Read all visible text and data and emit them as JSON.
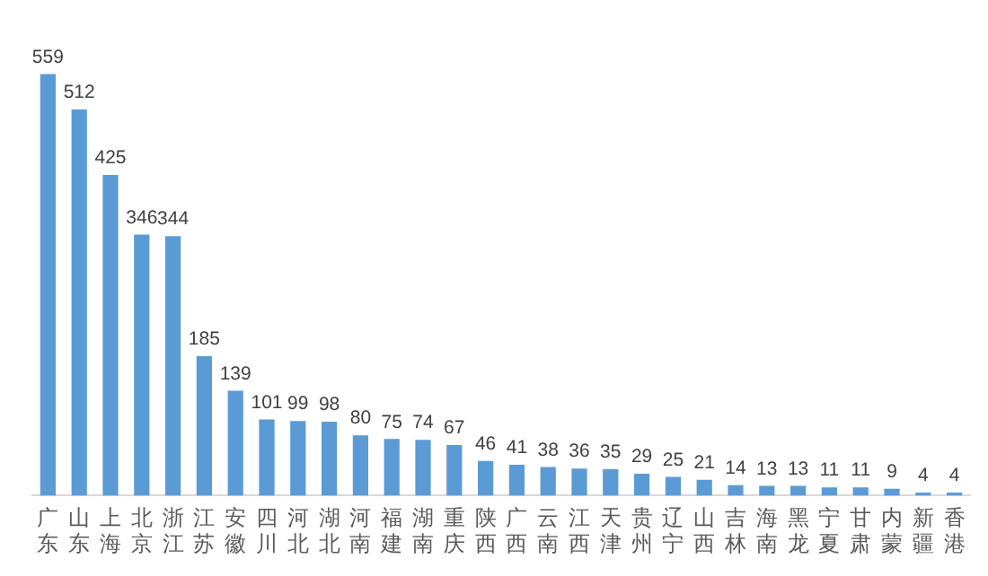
{
  "chart_data": {
    "type": "bar",
    "categories": [
      "广东",
      "山东",
      "上海",
      "北京",
      "浙江",
      "江苏",
      "安徽",
      "四川",
      "河北",
      "湖北",
      "河南",
      "福建",
      "湖南",
      "重庆",
      "陕西",
      "广西",
      "云南",
      "江西",
      "天津",
      "贵州",
      "辽宁",
      "山西",
      "吉林",
      "海南",
      "黑龙",
      "宁夏",
      "甘肃",
      "内蒙",
      "新疆",
      "香港"
    ],
    "values": [
      559,
      512,
      425,
      346,
      344,
      185,
      139,
      101,
      99,
      98,
      80,
      75,
      74,
      67,
      46,
      41,
      38,
      36,
      35,
      29,
      25,
      21,
      14,
      13,
      13,
      11,
      11,
      9,
      4,
      4
    ],
    "color": "#5b9bd5",
    "data_labels": true,
    "grid": false,
    "legend": false
  }
}
